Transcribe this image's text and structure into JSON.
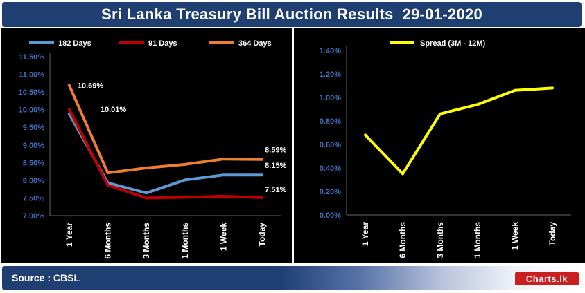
{
  "header": {
    "title": "Sri Lanka Treasury Bill Auction Results  29-01-2020"
  },
  "footer": {
    "source": "Source : CBSL",
    "logo": "Charts.lk"
  },
  "colors": {
    "s182": "#5b9bd5",
    "s91": "#c00000",
    "s364": "#ed7d31",
    "spread": "#ffff00",
    "axis_text": "#4472c4",
    "label": "#ffffff",
    "title_bg": "#1f3f73"
  },
  "chart_data": [
    {
      "type": "line",
      "title": "",
      "xlabel": "",
      "ylabel": "",
      "categories": [
        "1 Year",
        "6 Months",
        "3 Months",
        "1 Months",
        "1 Week",
        "Today"
      ],
      "ylim": [
        7.0,
        11.5
      ],
      "yticks": [
        "7.00%",
        "7.50%",
        "8.00%",
        "8.50%",
        "9.00%",
        "9.50%",
        "10.00%",
        "10.50%",
        "11.00%",
        "11.50%"
      ],
      "series": [
        {
          "name": "182 Days",
          "color_key": "s182",
          "values": [
            9.88,
            7.93,
            7.64,
            8.01,
            8.15,
            8.15
          ]
        },
        {
          "name": "91 Days",
          "color_key": "s91",
          "values": [
            10.01,
            7.86,
            7.5,
            7.52,
            7.55,
            7.51
          ]
        },
        {
          "name": "364 Days",
          "color_key": "s364",
          "values": [
            10.69,
            8.21,
            8.35,
            8.45,
            8.6,
            8.59
          ]
        }
      ],
      "annotations": [
        "10.69%",
        "10.01%",
        "8.59%",
        "8.15%",
        "7.51%"
      ],
      "legend_position": "top"
    },
    {
      "type": "line",
      "title": "",
      "xlabel": "",
      "ylabel": "",
      "categories": [
        "1 Year",
        "6 Months",
        "3 Months",
        "1 Months",
        "1 Week",
        "Today"
      ],
      "ylim": [
        0.0,
        1.4
      ],
      "yticks": [
        "0.00%",
        "0.20%",
        "0.40%",
        "0.60%",
        "0.80%",
        "1.00%",
        "1.20%",
        "1.40%"
      ],
      "series": [
        {
          "name": "Spread (3M - 12M)",
          "color_key": "spread",
          "values": [
            0.68,
            0.35,
            0.86,
            0.94,
            1.06,
            1.08
          ]
        }
      ],
      "legend_position": "top"
    }
  ]
}
